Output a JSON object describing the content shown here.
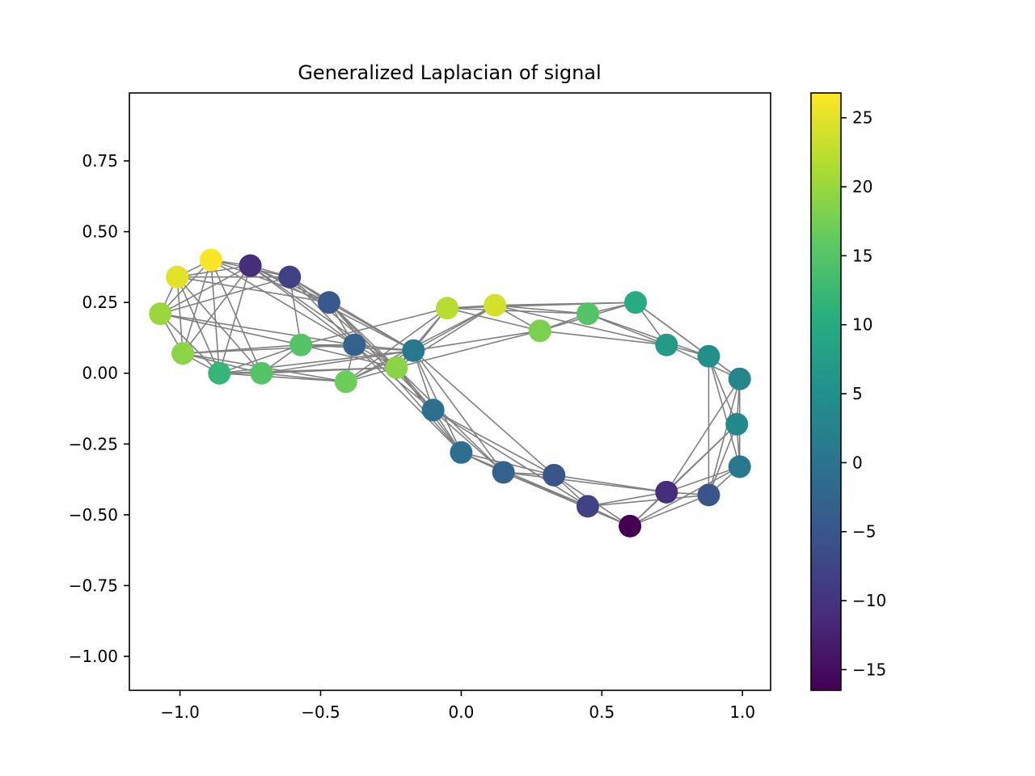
{
  "chart_data": {
    "type": "scatter",
    "title": "Generalized Laplacian of signal",
    "xlabel": "",
    "ylabel": "",
    "xlim": [
      -1.18,
      1.1
    ],
    "ylim": [
      -1.12,
      0.99
    ],
    "xticks": [
      -1.0,
      -0.5,
      0.0,
      0.5,
      1.0
    ],
    "xtick_labels": [
      "−1.0",
      "−0.5",
      "0.0",
      "0.5",
      "1.0"
    ],
    "yticks": [
      0.75,
      0.5,
      0.25,
      0.0,
      -0.25,
      -0.5,
      -0.75,
      -1.0
    ],
    "ytick_labels": [
      "0.75",
      "0.50",
      "0.25",
      "0.00",
      "−0.25",
      "−0.50",
      "−0.75",
      "−1.00"
    ],
    "grid": false,
    "colormap": "viridis",
    "edge_color": "#808080",
    "colorbar": {
      "min": -16.5,
      "max": 26.8,
      "ticks": [
        25,
        20,
        15,
        10,
        5,
        0,
        -5,
        -10,
        -15
      ],
      "tick_labels": [
        "25",
        "20",
        "15",
        "10",
        "5",
        "0",
        "−5",
        "−10",
        "−15"
      ]
    },
    "nodes": [
      {
        "x": -1.07,
        "y": 0.21,
        "value": 20
      },
      {
        "x": -1.01,
        "y": 0.34,
        "value": 25
      },
      {
        "x": -0.89,
        "y": 0.4,
        "value": 26.5
      },
      {
        "x": -0.75,
        "y": 0.38,
        "value": -11
      },
      {
        "x": -0.61,
        "y": 0.34,
        "value": -8
      },
      {
        "x": -0.47,
        "y": 0.25,
        "value": -4.5
      },
      {
        "x": -0.99,
        "y": 0.07,
        "value": 19
      },
      {
        "x": -0.86,
        "y": 0.0,
        "value": 12
      },
      {
        "x": -0.71,
        "y": 0.0,
        "value": 15
      },
      {
        "x": -0.57,
        "y": 0.1,
        "value": 15
      },
      {
        "x": -0.41,
        "y": -0.03,
        "value": 17
      },
      {
        "x": -0.38,
        "y": 0.1,
        "value": -3
      },
      {
        "x": -0.23,
        "y": 0.02,
        "value": 19
      },
      {
        "x": -0.17,
        "y": 0.08,
        "value": 1
      },
      {
        "x": -0.05,
        "y": 0.23,
        "value": 22
      },
      {
        "x": 0.12,
        "y": 0.24,
        "value": 24
      },
      {
        "x": 0.28,
        "y": 0.15,
        "value": 18
      },
      {
        "x": 0.45,
        "y": 0.21,
        "value": 15
      },
      {
        "x": 0.62,
        "y": 0.25,
        "value": 10
      },
      {
        "x": 0.73,
        "y": 0.1,
        "value": 7
      },
      {
        "x": 0.88,
        "y": 0.06,
        "value": 5
      },
      {
        "x": 0.99,
        "y": -0.02,
        "value": 3
      },
      {
        "x": 0.98,
        "y": -0.18,
        "value": 4
      },
      {
        "x": 0.99,
        "y": -0.33,
        "value": 1
      },
      {
        "x": 0.88,
        "y": -0.43,
        "value": -5
      },
      {
        "x": 0.73,
        "y": -0.42,
        "value": -11
      },
      {
        "x": 0.6,
        "y": -0.54,
        "value": -16.5
      },
      {
        "x": 0.45,
        "y": -0.47,
        "value": -8
      },
      {
        "x": 0.33,
        "y": -0.36,
        "value": -5
      },
      {
        "x": 0.15,
        "y": -0.35,
        "value": -3
      },
      {
        "x": 0.0,
        "y": -0.28,
        "value": -1
      },
      {
        "x": -0.1,
        "y": -0.13,
        "value": -1
      }
    ],
    "edges": [
      [
        0,
        1
      ],
      [
        0,
        2
      ],
      [
        0,
        6
      ],
      [
        0,
        7
      ],
      [
        0,
        3
      ],
      [
        0,
        9
      ],
      [
        0,
        11
      ],
      [
        0,
        4
      ],
      [
        1,
        2
      ],
      [
        1,
        3
      ],
      [
        1,
        6
      ],
      [
        1,
        7
      ],
      [
        1,
        4
      ],
      [
        1,
        8
      ],
      [
        1,
        5
      ],
      [
        2,
        3
      ],
      [
        2,
        4
      ],
      [
        2,
        6
      ],
      [
        2,
        7
      ],
      [
        2,
        8
      ],
      [
        2,
        11
      ],
      [
        2,
        5
      ],
      [
        3,
        4
      ],
      [
        3,
        5
      ],
      [
        3,
        6
      ],
      [
        3,
        7
      ],
      [
        3,
        11
      ],
      [
        3,
        13
      ],
      [
        3,
        12
      ],
      [
        4,
        5
      ],
      [
        4,
        11
      ],
      [
        4,
        13
      ],
      [
        4,
        9
      ],
      [
        4,
        12
      ],
      [
        5,
        11
      ],
      [
        5,
        13
      ],
      [
        5,
        12
      ],
      [
        5,
        31
      ],
      [
        5,
        30
      ],
      [
        6,
        7
      ],
      [
        6,
        8
      ],
      [
        6,
        9
      ],
      [
        6,
        11
      ],
      [
        6,
        10
      ],
      [
        7,
        8
      ],
      [
        7,
        10
      ],
      [
        7,
        12
      ],
      [
        7,
        9
      ],
      [
        7,
        13
      ],
      [
        8,
        9
      ],
      [
        8,
        10
      ],
      [
        8,
        12
      ],
      [
        8,
        13
      ],
      [
        9,
        11
      ],
      [
        9,
        14
      ],
      [
        9,
        12
      ],
      [
        9,
        13
      ],
      [
        10,
        12
      ],
      [
        10,
        13
      ],
      [
        10,
        14
      ],
      [
        10,
        15
      ],
      [
        11,
        13
      ],
      [
        11,
        12
      ],
      [
        11,
        31
      ],
      [
        11,
        30
      ],
      [
        12,
        14
      ],
      [
        12,
        15
      ],
      [
        12,
        16
      ],
      [
        12,
        13
      ],
      [
        13,
        14
      ],
      [
        13,
        15
      ],
      [
        13,
        16
      ],
      [
        13,
        31
      ],
      [
        13,
        30
      ],
      [
        13,
        29
      ],
      [
        13,
        28
      ],
      [
        14,
        15
      ],
      [
        14,
        16
      ],
      [
        14,
        17
      ],
      [
        14,
        18
      ],
      [
        15,
        16
      ],
      [
        15,
        17
      ],
      [
        15,
        18
      ],
      [
        15,
        19
      ],
      [
        16,
        17
      ],
      [
        16,
        18
      ],
      [
        16,
        19
      ],
      [
        17,
        18
      ],
      [
        17,
        19
      ],
      [
        17,
        20
      ],
      [
        18,
        19
      ],
      [
        18,
        20
      ],
      [
        18,
        21
      ],
      [
        19,
        20
      ],
      [
        19,
        21
      ],
      [
        20,
        21
      ],
      [
        20,
        22
      ],
      [
        20,
        23
      ],
      [
        20,
        24
      ],
      [
        21,
        22
      ],
      [
        21,
        23
      ],
      [
        21,
        24
      ],
      [
        21,
        25
      ],
      [
        22,
        23
      ],
      [
        22,
        24
      ],
      [
        22,
        25
      ],
      [
        22,
        26
      ],
      [
        23,
        24
      ],
      [
        23,
        25
      ],
      [
        23,
        26
      ],
      [
        24,
        25
      ],
      [
        24,
        26
      ],
      [
        24,
        27
      ],
      [
        25,
        26
      ],
      [
        25,
        27
      ],
      [
        25,
        28
      ],
      [
        25,
        29
      ],
      [
        26,
        27
      ],
      [
        26,
        28
      ],
      [
        26,
        29
      ],
      [
        27,
        28
      ],
      [
        27,
        29
      ],
      [
        27,
        30
      ],
      [
        27,
        31
      ],
      [
        28,
        29
      ],
      [
        28,
        30
      ],
      [
        28,
        31
      ],
      [
        29,
        30
      ],
      [
        29,
        31
      ],
      [
        30,
        31
      ],
      [
        12,
        31
      ],
      [
        12,
        30
      ],
      [
        10,
        11
      ],
      [
        12,
        29
      ]
    ]
  }
}
